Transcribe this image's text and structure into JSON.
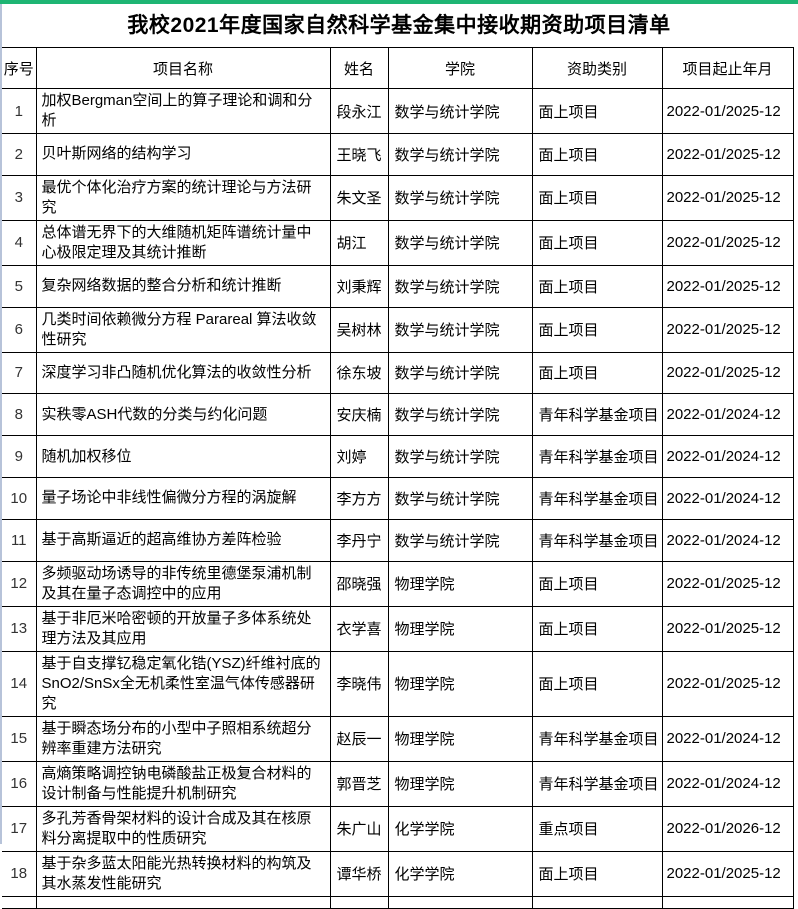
{
  "page": {
    "title": "我校2021年度国家自然科学基金集中接收期资助项目清单"
  },
  "colors": {
    "top_bar_green": "#1eb573",
    "table_border": "#000000",
    "left_edge_line": "#b7c3d9"
  },
  "table": {
    "columns": [
      "序号",
      "项目名称",
      "姓名",
      "学院",
      "资助类别",
      "项目起止年月"
    ],
    "rows": [
      {
        "no": "1",
        "name": "加权Bergman空间上的算子理论和调和分析",
        "person": "段永江",
        "college": "数学与统计学院",
        "category": "面上项目",
        "period": "2022-01/2025-12"
      },
      {
        "no": "2",
        "name": "贝叶斯网络的结构学习",
        "person": "王晓飞",
        "college": "数学与统计学院",
        "category": "面上项目",
        "period": "2022-01/2025-12"
      },
      {
        "no": "3",
        "name": "最优个体化治疗方案的统计理论与方法研究",
        "person": "朱文圣",
        "college": "数学与统计学院",
        "category": "面上项目",
        "period": "2022-01/2025-12"
      },
      {
        "no": "4",
        "name": "总体谱无界下的大维随机矩阵谱统计量中心极限定理及其统计推断",
        "person": "胡江",
        "college": "数学与统计学院",
        "category": "面上项目",
        "period": "2022-01/2025-12"
      },
      {
        "no": "5",
        "name": "复杂网络数据的整合分析和统计推断",
        "person": "刘秉辉",
        "college": "数学与统计学院",
        "category": "面上项目",
        "period": "2022-01/2025-12"
      },
      {
        "no": "6",
        "name": "几类时间依赖微分方程 Parareal 算法收敛性研究",
        "person": "吴树林",
        "college": "数学与统计学院",
        "category": "面上项目",
        "period": "2022-01/2025-12"
      },
      {
        "no": "7",
        "name": "深度学习非凸随机优化算法的收敛性分析",
        "person": "徐东坡",
        "college": "数学与统计学院",
        "category": "面上项目",
        "period": "2022-01/2025-12"
      },
      {
        "no": "8",
        "name": "实秩零ASH代数的分类与约化问题",
        "person": "安庆楠",
        "college": "数学与统计学院",
        "category": "青年科学基金项目",
        "period": "2022-01/2024-12"
      },
      {
        "no": "9",
        "name": "随机加权移位",
        "person": "刘婷",
        "college": "数学与统计学院",
        "category": "青年科学基金项目",
        "period": "2022-01/2024-12"
      },
      {
        "no": "10",
        "name": "量子场论中非线性偏微分方程的涡旋解",
        "person": "李方方",
        "college": "数学与统计学院",
        "category": "青年科学基金项目",
        "period": "2022-01/2024-12"
      },
      {
        "no": "11",
        "name": "基于高斯逼近的超高维协方差阵检验",
        "person": "李丹宁",
        "college": "数学与统计学院",
        "category": "青年科学基金项目",
        "period": "2022-01/2024-12"
      },
      {
        "no": "12",
        "name": "多频驱动场诱导的非传统里德堡泵浦机制及其在量子态调控中的应用",
        "person": "邵晓强",
        "college": "物理学院",
        "category": "面上项目",
        "period": "2022-01/2025-12"
      },
      {
        "no": "13",
        "name": "基于非厄米哈密顿的开放量子多体系统处理方法及其应用",
        "person": "衣学喜",
        "college": "物理学院",
        "category": "面上项目",
        "period": "2022-01/2025-12"
      },
      {
        "no": "14",
        "name": "基于自支撑钇稳定氧化锆(YSZ)纤维衬底的SnO2/SnSx全无机柔性室温气体传感器研究",
        "person": "李晓伟",
        "college": "物理学院",
        "category": "面上项目",
        "period": "2022-01/2025-12"
      },
      {
        "no": "15",
        "name": "基于瞬态场分布的小型中子照相系统超分辨率重建方法研究",
        "person": "赵辰一",
        "college": "物理学院",
        "category": "青年科学基金项目",
        "period": "2022-01/2024-12"
      },
      {
        "no": "16",
        "name": "高熵策略调控钠电磷酸盐正极复合材料的设计制备与性能提升机制研究",
        "person": "郭晋芝",
        "college": "物理学院",
        "category": "青年科学基金项目",
        "period": "2022-01/2024-12"
      },
      {
        "no": "17",
        "name": "多孔芳香骨架材料的设计合成及其在核原料分离提取中的性质研究",
        "person": "朱广山",
        "college": "化学学院",
        "category": "重点项目",
        "period": "2022-01/2026-12"
      },
      {
        "no": "18",
        "name": "基于杂多蓝太阳能光热转换材料的构筑及其水蒸发性能研究",
        "person": "谭华桥",
        "college": "化学学院",
        "category": "面上项目",
        "period": "2022-01/2025-12"
      }
    ]
  }
}
